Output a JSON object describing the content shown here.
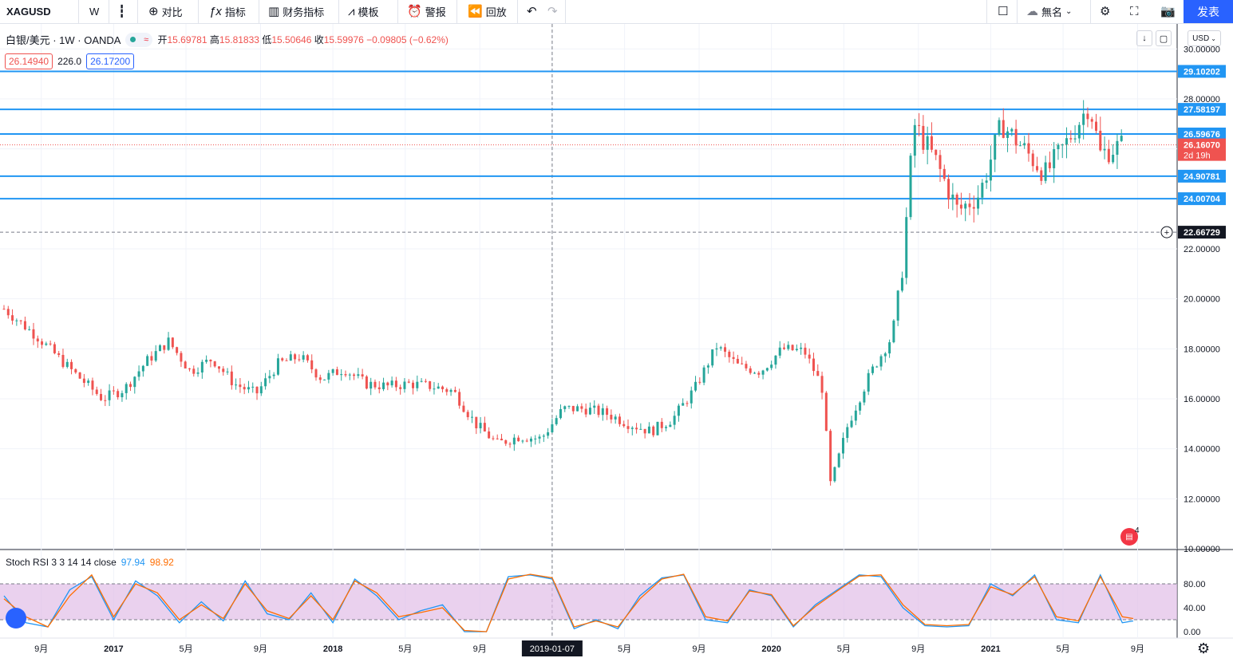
{
  "toolbar": {
    "symbol": "XAGUSD",
    "interval": "W",
    "compare": "对比",
    "indicators": "指标",
    "financials": "财务指标",
    "templates": "模板",
    "alerts": "警报",
    "replay": "回放",
    "layout_name": "無名",
    "publish": "发表"
  },
  "legend": {
    "title": "白银/美元 · 1W · OANDA",
    "open_label": "开",
    "open": "15.69781",
    "high_label": "高",
    "high": "15.81833",
    "low_label": "低",
    "low": "15.50646",
    "close_label": "收",
    "close": "15.59976",
    "change": "−0.09805 (−0.62%)"
  },
  "quotes": {
    "sell": "26.14940",
    "spread": "226.0",
    "buy": "26.17200"
  },
  "currency": "USD",
  "stoch": {
    "label": "Stoch RSI 3 3 14 14 close",
    "k": "97.94",
    "d": "98.92"
  },
  "news_count": "4",
  "colors": {
    "up": "#26a69a",
    "down": "#ef5350",
    "hline": "#2196f3",
    "band": "#e1bee7",
    "k": "#2196f3",
    "d": "#ff6d00"
  },
  "chart_data": {
    "type": "candlestick",
    "ylim": [
      10,
      31
    ],
    "y_ticks": [
      "30.00000",
      "28.00000",
      "26.00000",
      "24.00000",
      "22.00000",
      "20.00000",
      "18.00000",
      "16.00000",
      "14.00000",
      "12.00000",
      "10.00000"
    ],
    "x_ticks": [
      "9月",
      "2017",
      "5月",
      "9月",
      "2018",
      "5月",
      "9月",
      "2019-01-07",
      "5月",
      "9月",
      "2020",
      "5月",
      "9月",
      "2021",
      "5月",
      "9月"
    ],
    "horizontal_lines": [
      {
        "value": "29.10202"
      },
      {
        "value": "27.58197"
      },
      {
        "value": "26.59676"
      },
      {
        "value": "24.90781"
      },
      {
        "value": "24.00704"
      }
    ],
    "last_price": "26.16070",
    "countdown": "2d 19h",
    "crosshair_price": "22.66729",
    "crosshair_date": "2019-01-07",
    "close_path": [
      [
        2016.45,
        19.6
      ],
      [
        2016.6,
        18.5
      ],
      [
        2016.75,
        17.2
      ],
      [
        2016.9,
        16.0
      ],
      [
        2017.0,
        16.4
      ],
      [
        2017.1,
        17.5
      ],
      [
        2017.2,
        18.3
      ],
      [
        2017.3,
        17.1
      ],
      [
        2017.4,
        17.6
      ],
      [
        2017.5,
        16.6
      ],
      [
        2017.6,
        16.2
      ],
      [
        2017.7,
        17.4
      ],
      [
        2017.8,
        17.7
      ],
      [
        2017.9,
        16.8
      ],
      [
        2018.0,
        17.2
      ],
      [
        2018.1,
        16.6
      ],
      [
        2018.2,
        16.5
      ],
      [
        2018.3,
        16.6
      ],
      [
        2018.4,
        16.5
      ],
      [
        2018.5,
        16.3
      ],
      [
        2018.6,
        15.0
      ],
      [
        2018.7,
        14.2
      ],
      [
        2018.8,
        14.5
      ],
      [
        2018.9,
        14.4
      ],
      [
        2019.0,
        15.6
      ],
      [
        2019.1,
        15.6
      ],
      [
        2019.2,
        15.4
      ],
      [
        2019.3,
        15.0
      ],
      [
        2019.4,
        14.7
      ],
      [
        2019.5,
        15.2
      ],
      [
        2019.6,
        16.4
      ],
      [
        2019.7,
        18.1
      ],
      [
        2019.8,
        17.3
      ],
      [
        2019.9,
        17.1
      ],
      [
        2020.0,
        18.0
      ],
      [
        2020.1,
        17.9
      ],
      [
        2020.18,
        16.5
      ],
      [
        2020.22,
        12.5
      ],
      [
        2020.3,
        15.0
      ],
      [
        2020.4,
        17.0
      ],
      [
        2020.5,
        18.5
      ],
      [
        2020.55,
        21.5
      ],
      [
        2020.6,
        27.0
      ],
      [
        2020.7,
        25.5
      ],
      [
        2020.8,
        23.5
      ],
      [
        2020.9,
        24.2
      ],
      [
        2021.0,
        27.0
      ],
      [
        2021.1,
        26.0
      ],
      [
        2021.2,
        25.0
      ],
      [
        2021.3,
        26.3
      ],
      [
        2021.4,
        27.8
      ],
      [
        2021.45,
        25.8
      ],
      [
        2021.55,
        26.16
      ]
    ],
    "stoch_k_path": [
      [
        2016.45,
        60
      ],
      [
        2016.55,
        15
      ],
      [
        2016.65,
        8
      ],
      [
        2016.75,
        70
      ],
      [
        2016.85,
        92
      ],
      [
        2016.95,
        20
      ],
      [
        2017.05,
        85
      ],
      [
        2017.15,
        60
      ],
      [
        2017.25,
        15
      ],
      [
        2017.35,
        50
      ],
      [
        2017.45,
        18
      ],
      [
        2017.55,
        85
      ],
      [
        2017.65,
        30
      ],
      [
        2017.75,
        20
      ],
      [
        2017.85,
        65
      ],
      [
        2017.95,
        15
      ],
      [
        2018.05,
        88
      ],
      [
        2018.15,
        60
      ],
      [
        2018.25,
        20
      ],
      [
        2018.35,
        35
      ],
      [
        2018.45,
        45
      ],
      [
        2018.55,
        0
      ],
      [
        2018.65,
        0
      ],
      [
        2018.75,
        92
      ],
      [
        2018.85,
        95
      ],
      [
        2018.95,
        88
      ],
      [
        2019.05,
        5
      ],
      [
        2019.15,
        20
      ],
      [
        2019.25,
        5
      ],
      [
        2019.35,
        60
      ],
      [
        2019.45,
        90
      ],
      [
        2019.55,
        95
      ],
      [
        2019.65,
        20
      ],
      [
        2019.75,
        15
      ],
      [
        2019.85,
        70
      ],
      [
        2019.95,
        60
      ],
      [
        2020.05,
        8
      ],
      [
        2020.15,
        45
      ],
      [
        2020.25,
        70
      ],
      [
        2020.35,
        95
      ],
      [
        2020.45,
        92
      ],
      [
        2020.55,
        40
      ],
      [
        2020.65,
        10
      ],
      [
        2020.75,
        8
      ],
      [
        2020.85,
        10
      ],
      [
        2020.95,
        80
      ],
      [
        2021.05,
        60
      ],
      [
        2021.15,
        95
      ],
      [
        2021.25,
        20
      ],
      [
        2021.35,
        15
      ],
      [
        2021.45,
        95
      ],
      [
        2021.55,
        15
      ],
      [
        2021.6,
        18
      ]
    ],
    "stoch_d_path": [
      [
        2016.45,
        55
      ],
      [
        2016.55,
        25
      ],
      [
        2016.65,
        8
      ],
      [
        2016.75,
        60
      ],
      [
        2016.85,
        95
      ],
      [
        2016.95,
        25
      ],
      [
        2017.05,
        80
      ],
      [
        2017.15,
        65
      ],
      [
        2017.25,
        20
      ],
      [
        2017.35,
        45
      ],
      [
        2017.45,
        22
      ],
      [
        2017.55,
        80
      ],
      [
        2017.65,
        35
      ],
      [
        2017.75,
        22
      ],
      [
        2017.85,
        60
      ],
      [
        2017.95,
        20
      ],
      [
        2018.05,
        85
      ],
      [
        2018.15,
        65
      ],
      [
        2018.25,
        25
      ],
      [
        2018.35,
        32
      ],
      [
        2018.45,
        40
      ],
      [
        2018.55,
        2
      ],
      [
        2018.65,
        0
      ],
      [
        2018.75,
        88
      ],
      [
        2018.85,
        96
      ],
      [
        2018.95,
        90
      ],
      [
        2019.05,
        8
      ],
      [
        2019.15,
        18
      ],
      [
        2019.25,
        8
      ],
      [
        2019.35,
        55
      ],
      [
        2019.45,
        88
      ],
      [
        2019.55,
        96
      ],
      [
        2019.65,
        25
      ],
      [
        2019.75,
        18
      ],
      [
        2019.85,
        68
      ],
      [
        2019.95,
        62
      ],
      [
        2020.05,
        10
      ],
      [
        2020.15,
        42
      ],
      [
        2020.25,
        68
      ],
      [
        2020.35,
        93
      ],
      [
        2020.45,
        95
      ],
      [
        2020.55,
        45
      ],
      [
        2020.65,
        12
      ],
      [
        2020.75,
        10
      ],
      [
        2020.85,
        12
      ],
      [
        2020.95,
        75
      ],
      [
        2021.05,
        62
      ],
      [
        2021.15,
        92
      ],
      [
        2021.25,
        25
      ],
      [
        2021.35,
        18
      ],
      [
        2021.45,
        92
      ],
      [
        2021.55,
        25
      ],
      [
        2021.6,
        22
      ]
    ],
    "stoch_levels": [
      "80.00",
      "40.00",
      "0.00"
    ]
  }
}
